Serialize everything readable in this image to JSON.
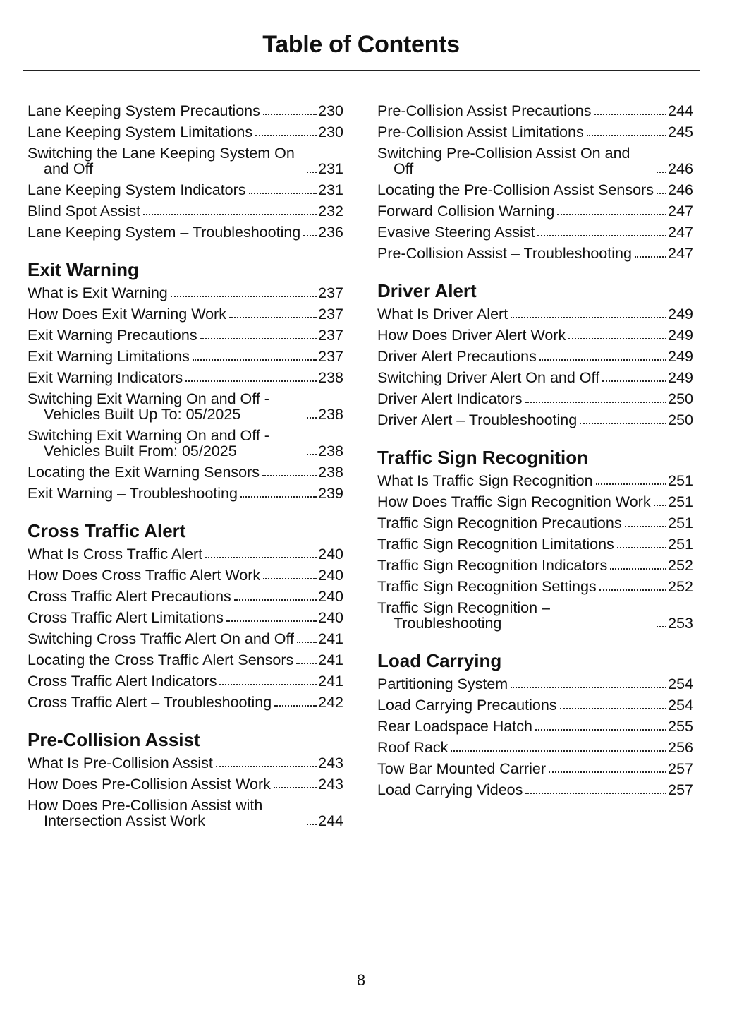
{
  "title": "Table of Contents",
  "page_number": "8",
  "columns": [
    [
      {
        "heading": "",
        "entries": [
          {
            "title": "Lane Keeping System Precautions",
            "page": "230"
          },
          {
            "title": "Lane Keeping System Limitations",
            "page": "230"
          },
          {
            "title": "Switching the Lane Keeping System On and Off",
            "page": "231"
          },
          {
            "title": "Lane Keeping System Indicators",
            "page": "231"
          },
          {
            "title": "Blind Spot Assist",
            "page": "232"
          },
          {
            "title": "Lane Keeping System – Troubleshooting",
            "page": "236"
          }
        ]
      },
      {
        "heading": "Exit Warning",
        "entries": [
          {
            "title": "What is Exit Warning",
            "page": "237"
          },
          {
            "title": "How Does Exit Warning Work",
            "page": "237"
          },
          {
            "title": "Exit Warning Precautions",
            "page": "237"
          },
          {
            "title": "Exit Warning Limitations",
            "page": "237"
          },
          {
            "title": "Exit Warning Indicators",
            "page": "238"
          },
          {
            "title": "Switching Exit Warning On and Off - Vehicles Built Up To: 05/2025",
            "page": "238"
          },
          {
            "title": "Switching Exit Warning On and Off - Vehicles Built From: 05/2025",
            "page": "238"
          },
          {
            "title": "Locating the Exit Warning Sensors",
            "page": "238"
          },
          {
            "title": "Exit Warning – Troubleshooting",
            "page": "239"
          }
        ]
      },
      {
        "heading": "Cross Traffic Alert",
        "entries": [
          {
            "title": "What Is Cross Traffic Alert",
            "page": "240"
          },
          {
            "title": "How Does Cross Traffic Alert Work",
            "page": "240"
          },
          {
            "title": "Cross Traffic Alert Precautions",
            "page": "240"
          },
          {
            "title": "Cross Traffic Alert Limitations",
            "page": "240"
          },
          {
            "title": "Switching Cross Traffic Alert On and Off",
            "page": "241"
          },
          {
            "title": "Locating the Cross Traffic Alert Sensors",
            "page": "241"
          },
          {
            "title": "Cross Traffic Alert Indicators",
            "page": "241"
          },
          {
            "title": "Cross Traffic Alert – Troubleshooting",
            "page": "242"
          }
        ]
      },
      {
        "heading": "Pre-Collision Assist",
        "entries": [
          {
            "title": "What Is Pre-Collision Assist",
            "page": "243"
          },
          {
            "title": "How Does Pre-Collision Assist Work",
            "page": "243"
          },
          {
            "title": "How Does Pre-Collision Assist with Intersection Assist Work",
            "page": "244"
          }
        ]
      }
    ],
    [
      {
        "heading": "",
        "entries": [
          {
            "title": "Pre-Collision Assist Precautions",
            "page": "244"
          },
          {
            "title": "Pre-Collision Assist Limitations",
            "page": "245"
          },
          {
            "title": "Switching Pre-Collision Assist On and Off",
            "page": "246"
          },
          {
            "title": "Locating the Pre-Collision Assist Sensors",
            "page": "246"
          },
          {
            "title": "Forward Collision Warning",
            "page": "247"
          },
          {
            "title": "Evasive Steering Assist",
            "page": "247"
          },
          {
            "title": "Pre-Collision Assist – Troubleshooting",
            "page": "247"
          }
        ]
      },
      {
        "heading": "Driver Alert",
        "entries": [
          {
            "title": "What Is Driver Alert",
            "page": "249"
          },
          {
            "title": "How Does Driver Alert Work",
            "page": "249"
          },
          {
            "title": "Driver Alert Precautions",
            "page": "249"
          },
          {
            "title": "Switching Driver Alert On and Off",
            "page": "249"
          },
          {
            "title": "Driver Alert Indicators",
            "page": "250"
          },
          {
            "title": "Driver Alert – Troubleshooting",
            "page": "250"
          }
        ]
      },
      {
        "heading": "Traffic Sign Recognition",
        "entries": [
          {
            "title": "What Is Traffic Sign Recognition",
            "page": "251"
          },
          {
            "title": "How Does Traffic Sign Recognition Work",
            "page": "251"
          },
          {
            "title": "Traffic Sign Recognition Precautions",
            "page": "251"
          },
          {
            "title": "Traffic Sign Recognition Limitations",
            "page": "251"
          },
          {
            "title": "Traffic Sign Recognition Indicators",
            "page": "252"
          },
          {
            "title": "Traffic Sign Recognition Settings",
            "page": "252"
          },
          {
            "title": "Traffic Sign Recognition – Troubleshooting",
            "page": "253"
          }
        ]
      },
      {
        "heading": "Load Carrying",
        "entries": [
          {
            "title": "Partitioning System",
            "page": "254"
          },
          {
            "title": "Load Carrying Precautions",
            "page": "254"
          },
          {
            "title": "Rear Loadspace Hatch",
            "page": "255"
          },
          {
            "title": "Roof Rack",
            "page": "256"
          },
          {
            "title": "Tow Bar Mounted Carrier",
            "page": "257"
          },
          {
            "title": "Load Carrying Videos",
            "page": "257"
          }
        ]
      }
    ]
  ]
}
